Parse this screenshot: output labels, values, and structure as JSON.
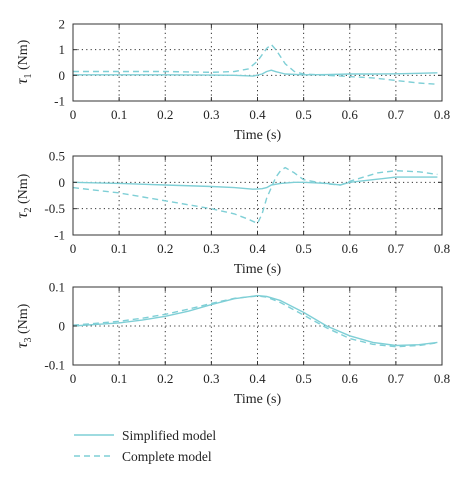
{
  "chart_data": [
    {
      "type": "line",
      "xlabel": "Time (s)",
      "ylabel": "τ1 (Nm)",
      "xlim": [
        0,
        0.8
      ],
      "ylim": [
        -1,
        2
      ],
      "xticks": [
        "0",
        "0.1",
        "0.2",
        "0.3",
        "0.4",
        "0.5",
        "0.6",
        "0.7",
        "0.8"
      ],
      "yticks": [
        "2",
        "1",
        "0",
        "-1"
      ],
      "grid": true,
      "series": [
        {
          "name": "Simplified model",
          "style": "solid",
          "x": [
            0,
            0.1,
            0.2,
            0.3,
            0.35,
            0.39,
            0.41,
            0.42,
            0.43,
            0.44,
            0.46,
            0.5,
            0.55,
            0.6,
            0.65,
            0.7,
            0.75,
            0.79
          ],
          "y": [
            0.02,
            0.02,
            0.02,
            0.01,
            0.0,
            -0.03,
            0.05,
            0.15,
            0.2,
            0.14,
            0.05,
            0.02,
            0.03,
            0.05,
            0.05,
            0.06,
            0.08,
            0.1
          ]
        },
        {
          "name": "Complete model",
          "style": "dashed",
          "x": [
            0,
            0.1,
            0.2,
            0.3,
            0.35,
            0.38,
            0.4,
            0.42,
            0.43,
            0.44,
            0.46,
            0.48,
            0.5,
            0.55,
            0.6,
            0.65,
            0.7,
            0.75,
            0.79
          ],
          "y": [
            0.15,
            0.15,
            0.15,
            0.12,
            0.15,
            0.25,
            0.55,
            1.05,
            1.2,
            1.0,
            0.45,
            0.15,
            0.05,
            0.0,
            -0.05,
            -0.1,
            -0.2,
            -0.3,
            -0.35
          ]
        }
      ]
    },
    {
      "type": "line",
      "xlabel": "Time (s)",
      "ylabel": "τ2 (Nm)",
      "xlim": [
        0,
        0.8
      ],
      "ylim": [
        -1,
        0.5
      ],
      "xticks": [
        "0",
        "0.1",
        "0.2",
        "0.3",
        "0.4",
        "0.5",
        "0.6",
        "0.7",
        "0.8"
      ],
      "yticks": [
        "0.5",
        "0",
        "-0.5",
        "-1"
      ],
      "grid": true,
      "series": [
        {
          "name": "Simplified model",
          "style": "solid",
          "x": [
            0,
            0.1,
            0.2,
            0.3,
            0.35,
            0.39,
            0.41,
            0.42,
            0.43,
            0.45,
            0.48,
            0.5,
            0.55,
            0.58,
            0.6,
            0.65,
            0.7,
            0.75,
            0.79
          ],
          "y": [
            0.0,
            -0.02,
            -0.05,
            -0.08,
            -0.1,
            -0.13,
            -0.12,
            -0.1,
            -0.05,
            -0.02,
            0.0,
            0.0,
            -0.02,
            -0.05,
            0.0,
            0.05,
            0.1,
            0.1,
            0.1
          ]
        },
        {
          "name": "Complete model",
          "style": "dashed",
          "x": [
            0,
            0.1,
            0.2,
            0.3,
            0.35,
            0.38,
            0.4,
            0.41,
            0.42,
            0.43,
            0.44,
            0.45,
            0.46,
            0.48,
            0.5,
            0.55,
            0.58,
            0.6,
            0.63,
            0.66,
            0.7,
            0.75,
            0.79
          ],
          "y": [
            -0.1,
            -0.2,
            -0.35,
            -0.5,
            -0.6,
            -0.7,
            -0.78,
            -0.6,
            -0.3,
            -0.1,
            0.1,
            0.22,
            0.28,
            0.18,
            0.05,
            -0.03,
            -0.05,
            0.02,
            0.1,
            0.18,
            0.22,
            0.2,
            0.15
          ]
        }
      ]
    },
    {
      "type": "line",
      "xlabel": "Time (s)",
      "ylabel": "τ3 (Nm)",
      "xlim": [
        0,
        0.8
      ],
      "ylim": [
        -0.1,
        0.1
      ],
      "xticks": [
        "0",
        "0.1",
        "0.2",
        "0.3",
        "0.4",
        "0.5",
        "0.6",
        "0.7",
        "0.8"
      ],
      "yticks": [
        "0.1",
        "0",
        "-0.1"
      ],
      "grid": true,
      "series": [
        {
          "name": "Simplified model",
          "style": "solid",
          "x": [
            0,
            0.05,
            0.1,
            0.15,
            0.2,
            0.25,
            0.3,
            0.35,
            0.4,
            0.42,
            0.45,
            0.5,
            0.55,
            0.6,
            0.65,
            0.7,
            0.75,
            0.79
          ],
          "y": [
            0.0,
            0.004,
            0.008,
            0.015,
            0.025,
            0.038,
            0.055,
            0.07,
            0.078,
            0.076,
            0.065,
            0.035,
            0.0,
            -0.025,
            -0.042,
            -0.05,
            -0.048,
            -0.042
          ]
        },
        {
          "name": "Complete model",
          "style": "dashed",
          "x": [
            0,
            0.05,
            0.1,
            0.15,
            0.2,
            0.25,
            0.3,
            0.35,
            0.4,
            0.42,
            0.45,
            0.5,
            0.55,
            0.6,
            0.65,
            0.7,
            0.75,
            0.79
          ],
          "y": [
            0.002,
            0.007,
            0.012,
            0.02,
            0.03,
            0.043,
            0.058,
            0.071,
            0.077,
            0.074,
            0.06,
            0.028,
            -0.005,
            -0.032,
            -0.047,
            -0.053,
            -0.05,
            -0.043
          ]
        }
      ]
    }
  ],
  "legend": {
    "placement": "bottom-left",
    "items": [
      {
        "label": "Simplified model",
        "style": "solid"
      },
      {
        "label": "Complete model",
        "style": "dashed"
      }
    ]
  },
  "colors": {
    "line": "#7fcfd6",
    "grid": "#333333",
    "axis": "#333333",
    "text": "#222222"
  }
}
